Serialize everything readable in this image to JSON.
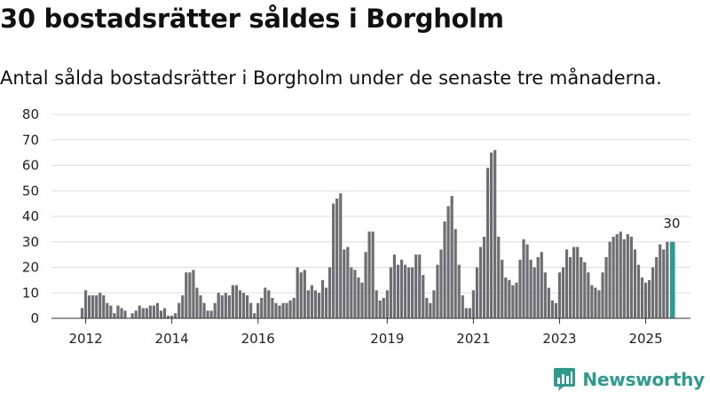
{
  "title": "30 bostadsrätter såldes i Borgholm",
  "subtitle": "Antal sålda bostadsrätter i Borgholm under de senaste tre månaderna.",
  "colors": {
    "bar": "#6e6d73",
    "highlight": "#2a9d8f",
    "grid": "#dddddd",
    "axis": "#333333",
    "brand": "#2a9d8f"
  },
  "brand": {
    "name": "Newsworthy",
    "icon": "bar-chart-bubble-icon"
  },
  "chart_data": {
    "type": "bar",
    "title": "30 bostadsrätter såldes i Borgholm",
    "subtitle": "Antal sålda bostadsrätter i Borgholm under de senaste tre månaderna.",
    "xlabel": "",
    "ylabel": "",
    "ylim": [
      0,
      80
    ],
    "yticks": [
      0,
      10,
      20,
      30,
      40,
      50,
      60,
      70,
      80
    ],
    "grid": true,
    "x_start": "2012-01",
    "frequency": "monthly",
    "xticks": [
      {
        "label": "2012",
        "index": 1
      },
      {
        "label": "2014",
        "index": 25
      },
      {
        "label": "2016",
        "index": 49
      },
      {
        "label": "2019",
        "index": 85
      },
      {
        "label": "2021",
        "index": 109
      },
      {
        "label": "2023",
        "index": 133
      },
      {
        "label": "2025",
        "index": 157
      }
    ],
    "values": [
      4,
      11,
      9,
      9,
      9,
      10,
      9,
      6,
      5,
      2,
      5,
      4,
      3,
      0,
      2,
      3,
      5,
      4,
      4,
      5,
      5,
      6,
      3,
      4,
      1,
      1,
      2,
      6,
      9,
      18,
      18,
      19,
      12,
      9,
      6,
      3,
      3,
      6,
      10,
      9,
      10,
      9,
      13,
      13,
      11,
      10,
      9,
      6,
      2,
      6,
      8,
      12,
      11,
      8,
      6,
      5,
      6,
      6,
      7,
      8,
      20,
      18,
      19,
      11,
      13,
      11,
      10,
      15,
      12,
      20,
      45,
      47,
      49,
      27,
      28,
      20,
      19,
      16,
      14,
      26,
      34,
      34,
      11,
      7,
      8,
      11,
      20,
      25,
      21,
      23,
      21,
      20,
      20,
      25,
      25,
      17,
      8,
      6,
      11,
      21,
      27,
      38,
      44,
      48,
      35,
      21,
      9,
      4,
      4,
      11,
      20,
      28,
      32,
      59,
      65,
      66,
      32,
      23,
      16,
      15,
      13,
      14,
      23,
      31,
      29,
      23,
      20,
      24,
      26,
      18,
      12,
      7,
      6,
      18,
      20,
      27,
      24,
      28,
      28,
      24,
      22,
      18,
      13,
      12,
      11,
      18,
      24,
      30,
      32,
      33,
      34,
      31,
      33,
      32,
      27,
      21,
      16,
      14,
      15,
      20,
      24,
      29,
      27,
      30,
      30
    ],
    "highlight_last": 1,
    "annotations": [
      {
        "text": "30",
        "target": "last-bar"
      }
    ]
  }
}
